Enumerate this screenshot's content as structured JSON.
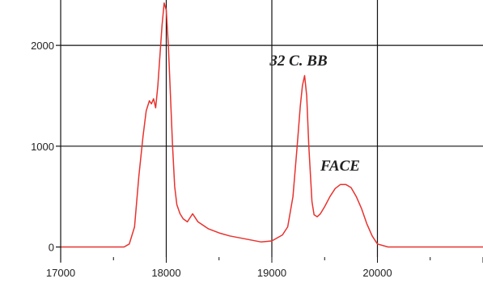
{
  "chart_data": {
    "type": "line",
    "title": "",
    "xlabel": "",
    "ylabel": "",
    "xlim": [
      17000,
      21000
    ],
    "ylim": [
      -100,
      2450
    ],
    "grid": true,
    "line_color": "#e8322e",
    "x_ticks": [
      {
        "value": 17000,
        "label": "17000"
      },
      {
        "value": 18000,
        "label": "18000"
      },
      {
        "value": 19000,
        "label": "19000"
      },
      {
        "value": 20000,
        "label": "20000"
      }
    ],
    "y_ticks": [
      {
        "value": 0,
        "label": "0"
      },
      {
        "value": 1000,
        "label": "1000"
      },
      {
        "value": 2000,
        "label": "2000"
      }
    ],
    "annotations": [
      {
        "text": "32 C. BB",
        "x": 18980,
        "y": 1800
      },
      {
        "text": "FACE",
        "x": 19460,
        "y": 760
      }
    ],
    "series": [
      {
        "x": [
          17000,
          17600,
          17650,
          17700,
          17740,
          17780,
          17810,
          17840,
          17860,
          17880,
          17900,
          17920,
          17940,
          17960,
          17980,
          18000,
          18020,
          18040,
          18060,
          18080,
          18100,
          18130,
          18160,
          18200,
          18250,
          18300,
          18400,
          18500,
          18600,
          18700,
          18800,
          18900,
          19000,
          19100,
          19150,
          19200,
          19240,
          19270,
          19290,
          19310,
          19330,
          19350,
          19380,
          19400,
          19430,
          19460,
          19500,
          19550,
          19600,
          19650,
          19700,
          19750,
          19800,
          19850,
          19900,
          19950,
          20000,
          20100,
          20500,
          21000
        ],
        "y": [
          0,
          0,
          30,
          200,
          700,
          1100,
          1350,
          1450,
          1420,
          1470,
          1380,
          1600,
          1900,
          2200,
          2420,
          2350,
          2000,
          1500,
          1000,
          600,
          420,
          330,
          280,
          250,
          330,
          250,
          180,
          140,
          110,
          90,
          70,
          50,
          60,
          120,
          200,
          500,
          1000,
          1400,
          1600,
          1700,
          1500,
          1000,
          450,
          320,
          300,
          330,
          400,
          500,
          580,
          620,
          620,
          590,
          500,
          380,
          230,
          110,
          30,
          0,
          0,
          0
        ]
      }
    ]
  }
}
